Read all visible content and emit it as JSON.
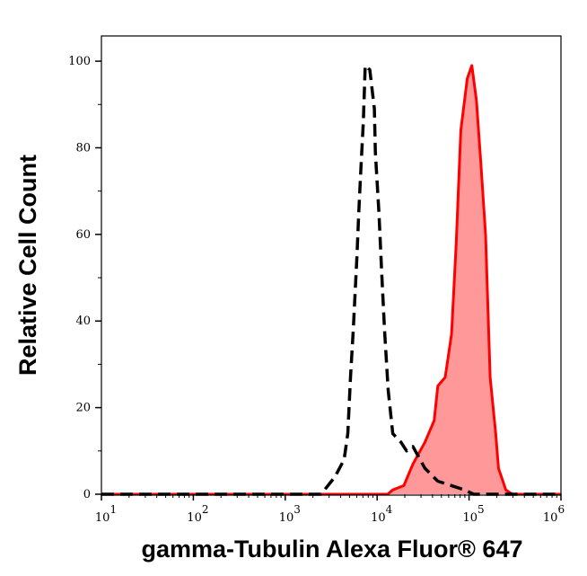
{
  "chart_data": {
    "type": "area",
    "title": "",
    "xlabel": "gamma-Tubulin Alexa Fluor® 647",
    "ylabel": "Relative Cell Count",
    "xscale": "log",
    "xlim": [
      10,
      1000000
    ],
    "ylim": [
      0,
      105
    ],
    "grid": false,
    "x_ticks": [
      {
        "base": "10",
        "exp": "1",
        "value": 10
      },
      {
        "base": "10",
        "exp": "2",
        "value": 100
      },
      {
        "base": "10",
        "exp": "3",
        "value": 1000
      },
      {
        "base": "10",
        "exp": "4",
        "value": 10000
      },
      {
        "base": "10",
        "exp": "5",
        "value": 100000
      },
      {
        "base": "10",
        "exp": "6",
        "value": 1000000
      }
    ],
    "y_ticks": [
      "0",
      "20",
      "40",
      "60",
      "80",
      "100"
    ],
    "series": [
      {
        "style": "dashed",
        "color": "#000000",
        "fill": "none",
        "x": [
          10,
          2450,
          3470,
          4370,
          4790,
          5130,
          5500,
          6030,
          6310,
          6610,
          7080,
          7410,
          8320,
          9330,
          9550,
          10470,
          11220,
          12020,
          13180,
          14790,
          18200,
          20890,
          24550,
          33110,
          45710,
          64570,
          89130,
          112200,
          1000000
        ],
        "y": [
          0,
          0,
          4,
          8,
          14,
          27,
          38,
          55,
          65,
          74,
          86,
          99,
          98,
          89,
          79,
          65,
          51,
          38,
          24,
          14,
          12,
          10,
          11,
          6,
          3,
          2,
          1,
          0,
          0
        ]
      },
      {
        "style": "solid",
        "color": "#ff0000",
        "fill": "#ff9999",
        "x": [
          10,
          13000,
          14790,
          19500,
          24550,
          33110,
          41690,
          45710,
          54950,
          64570,
          72440,
          81280,
          95500,
          107150,
          120200,
          134900,
          151400,
          169800,
          195000,
          208900,
          251200,
          295100,
          1000000
        ],
        "y": [
          0,
          0,
          1,
          2,
          7,
          12,
          17,
          25,
          27,
          37,
          58,
          84,
          96,
          99,
          91,
          76,
          60,
          27,
          14,
          6,
          1,
          0,
          0
        ]
      }
    ]
  }
}
